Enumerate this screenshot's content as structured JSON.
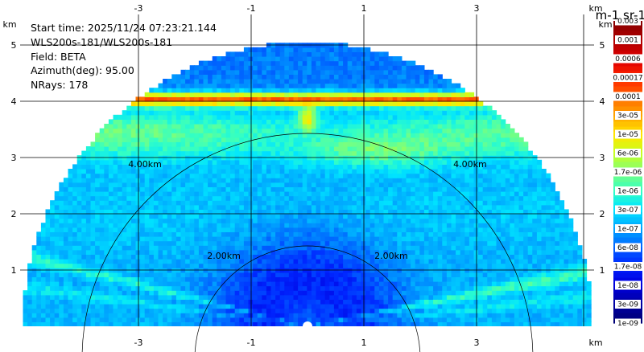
{
  "info": {
    "start_time": "Start time: 2025/11/24 07:23:21.144",
    "instrument": "WLS200s-181/WLS200s-181",
    "field": "Field: BETA",
    "azimuth": "Azimuth(deg): 95.00",
    "nrays": "NRays: 178"
  },
  "chart_data": {
    "type": "heatmap",
    "projection": "RHI half-disk (range-height)",
    "x_axis": {
      "unit": "km",
      "ticks": [
        "-3",
        "-1",
        "1",
        "3"
      ],
      "range": [
        -5.05,
        5.05
      ]
    },
    "y_axis": {
      "unit": "km",
      "ticks": [
        "1",
        "2",
        "3",
        "4",
        "5"
      ],
      "range": [
        0,
        5.2
      ]
    },
    "range_rings": [
      {
        "radius_km": 2,
        "labels": [
          "2.00km",
          "2.00km"
        ]
      },
      {
        "radius_km": 4,
        "labels": [
          "4.00km",
          "4.00km"
        ]
      }
    ],
    "max_range_km": 5.05,
    "features": [
      {
        "name": "strong layer",
        "height_km": 4.05,
        "level": "1e-04 to 2e-04"
      },
      {
        "name": "aerosol layer",
        "height_km": [
          3.0,
          3.9
        ],
        "level": "1e-06 to 1e-05"
      },
      {
        "name": "local maximum",
        "x_km": 0,
        "height_km": 3.7,
        "level": "6e-05"
      }
    ],
    "colorbar": {
      "title": "m-1 sr-1",
      "scale": "log",
      "labels": [
        "0.003",
        "0.001",
        "0.0006",
        "0.00017",
        "0.0001",
        "3e-05",
        "1e-05",
        "6e-06",
        "1.7e-06",
        "1e-06",
        "3e-07",
        "1e-07",
        "6e-08",
        "1.7e-08",
        "1e-08",
        "3e-09",
        "1e-09"
      ],
      "colors": [
        "#8b0000",
        "#b30000",
        "#e00000",
        "#ff2a00",
        "#ff6a00",
        "#ffa800",
        "#ffe600",
        "#c8ff20",
        "#7dff7a",
        "#33ffc4",
        "#00e5ff",
        "#00a8ff",
        "#0067ff",
        "#0026ff",
        "#0000e0",
        "#0000a8",
        "#000078"
      ]
    }
  }
}
